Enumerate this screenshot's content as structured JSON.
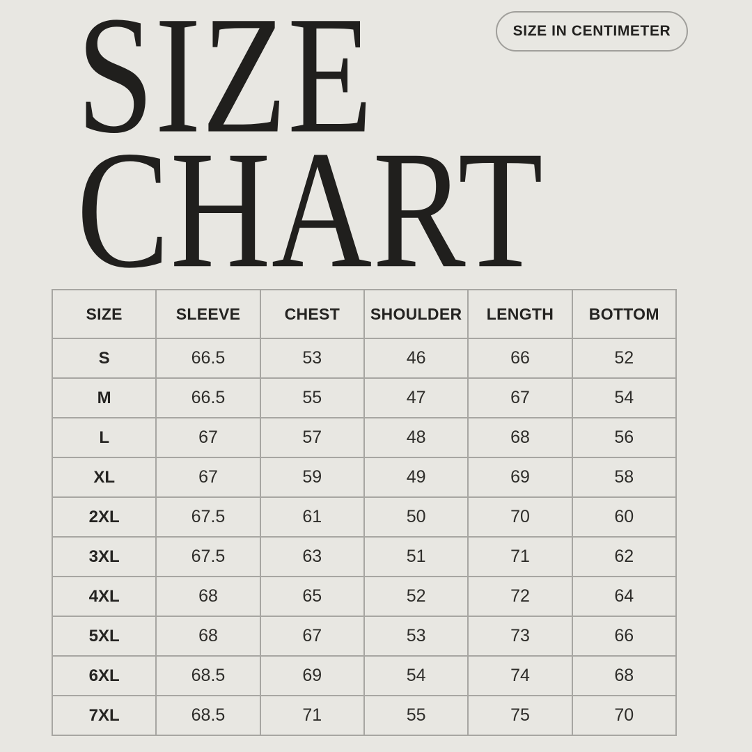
{
  "page": {
    "background_color": "#e8e7e2",
    "text_color": "#201f1d",
    "border_color": "#a7a6a2"
  },
  "title": {
    "line1": "SIZE",
    "line2": "CHART"
  },
  "badge": {
    "label": "SIZE IN CENTIMETER"
  },
  "chart_data": {
    "type": "table",
    "title": "SIZE CHART",
    "unit": "centimeter",
    "columns": [
      "SIZE",
      "SLEEVE",
      "CHEST",
      "SHOULDER",
      "LENGTH",
      "BOTTOM"
    ],
    "rows": [
      [
        "S",
        "66.5",
        "53",
        "46",
        "66",
        "52"
      ],
      [
        "M",
        "66.5",
        "55",
        "47",
        "67",
        "54"
      ],
      [
        "L",
        "67",
        "57",
        "48",
        "68",
        "56"
      ],
      [
        "XL",
        "67",
        "59",
        "49",
        "69",
        "58"
      ],
      [
        "2XL",
        "67.5",
        "61",
        "50",
        "70",
        "60"
      ],
      [
        "3XL",
        "67.5",
        "63",
        "51",
        "71",
        "62"
      ],
      [
        "4XL",
        "68",
        "65",
        "52",
        "72",
        "64"
      ],
      [
        "5XL",
        "68",
        "67",
        "53",
        "73",
        "66"
      ],
      [
        "6XL",
        "68.5",
        "69",
        "54",
        "74",
        "68"
      ],
      [
        "7XL",
        "68.5",
        "71",
        "55",
        "75",
        "70"
      ]
    ]
  }
}
